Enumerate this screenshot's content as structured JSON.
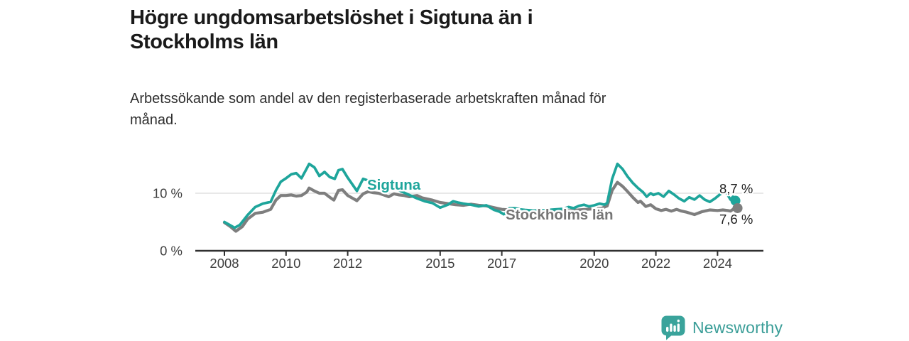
{
  "header": {
    "title": "Högre ungdomsarbetslöshet i Sigtuna än i Stockholms län",
    "subtitle": "Arbetssökande som andel av den registerbaserade arbetskraften månad för månad."
  },
  "footer": {
    "brand": "Newsworthy",
    "logo_icon": "bar-chart-speech-bubble-icon"
  },
  "colors": {
    "sigtuna_line": "#1ea59b",
    "stockholm_line": "#7e7e7e",
    "stockholm_label": "#767676",
    "value_label": "#1f1f1f",
    "axis": "#303030",
    "axis_text": "#3e3e3e",
    "gridline": "#d9d9d9",
    "brand_teal": "#3aa39b"
  },
  "chart_data": {
    "type": "line",
    "title": "Högre ungdomsarbetslöshet i Sigtuna än i Stockholms län",
    "subtitle": "Arbetssökande som andel av den registerbaserade arbetskraften månad för månad.",
    "unit": "%",
    "x_axis": {
      "range": [
        2007.05,
        2025.5
      ],
      "ticks": [
        2008,
        2010,
        2012,
        2015,
        2017,
        2020,
        2022,
        2024
      ],
      "grid": false
    },
    "y_axis": {
      "range": [
        0,
        17
      ],
      "ticks": [
        {
          "value": 0,
          "label": "0 %"
        },
        {
          "value": 10,
          "label": "10 %"
        }
      ],
      "grid": true
    },
    "legend_position": "inline-labels-on-lines",
    "series": [
      {
        "name": "Sigtuna",
        "end_label": "8,7 %",
        "final_value": 8.7,
        "points": [
          [
            2008.0,
            5.0
          ],
          [
            2008.17,
            4.5
          ],
          [
            2008.33,
            4.0
          ],
          [
            2008.5,
            4.5
          ],
          [
            2008.75,
            6.2
          ],
          [
            2009.0,
            7.6
          ],
          [
            2009.25,
            8.2
          ],
          [
            2009.5,
            8.5
          ],
          [
            2009.67,
            10.5
          ],
          [
            2009.83,
            12.0
          ],
          [
            2010.0,
            12.6
          ],
          [
            2010.17,
            13.3
          ],
          [
            2010.33,
            13.5
          ],
          [
            2010.5,
            12.6
          ],
          [
            2010.67,
            14.3
          ],
          [
            2010.75,
            15.1
          ],
          [
            2010.92,
            14.5
          ],
          [
            2011.08,
            13.0
          ],
          [
            2011.25,
            13.7
          ],
          [
            2011.42,
            12.8
          ],
          [
            2011.58,
            12.5
          ],
          [
            2011.7,
            14.0
          ],
          [
            2011.83,
            14.2
          ],
          [
            2012.0,
            12.7
          ],
          [
            2012.17,
            11.4
          ],
          [
            2012.3,
            10.4
          ],
          [
            2012.5,
            12.5
          ],
          [
            2012.67,
            12.2
          ],
          [
            2012.83,
            11.7
          ],
          [
            2013.0,
            11.4
          ],
          [
            2013.25,
            11.2
          ],
          [
            2013.5,
            11.0
          ],
          [
            2013.75,
            10.3
          ],
          [
            2014.0,
            9.7
          ],
          [
            2014.25,
            9.1
          ],
          [
            2014.5,
            8.6
          ],
          [
            2014.75,
            8.3
          ],
          [
            2015.0,
            7.5
          ],
          [
            2015.25,
            8.0
          ],
          [
            2015.42,
            8.6
          ],
          [
            2015.58,
            8.4
          ],
          [
            2015.75,
            8.2
          ],
          [
            2016.0,
            8.0
          ],
          [
            2016.25,
            7.7
          ],
          [
            2016.5,
            7.9
          ],
          [
            2016.75,
            7.1
          ],
          [
            2016.92,
            6.8
          ],
          [
            2017.08,
            6.3
          ],
          [
            2017.25,
            7.4
          ],
          [
            2017.42,
            7.4
          ],
          [
            2017.58,
            7.2
          ],
          [
            2017.75,
            7.1
          ],
          [
            2018.0,
            7.0
          ],
          [
            2018.25,
            7.0
          ],
          [
            2018.5,
            7.1
          ],
          [
            2018.75,
            7.2
          ],
          [
            2019.0,
            7.3
          ],
          [
            2019.17,
            7.6
          ],
          [
            2019.33,
            7.4
          ],
          [
            2019.5,
            7.8
          ],
          [
            2019.67,
            8.0
          ],
          [
            2019.83,
            7.7
          ],
          [
            2020.0,
            7.9
          ],
          [
            2020.17,
            8.2
          ],
          [
            2020.33,
            8.0
          ],
          [
            2020.42,
            8.3
          ],
          [
            2020.58,
            12.5
          ],
          [
            2020.75,
            15.1
          ],
          [
            2020.92,
            14.2
          ],
          [
            2021.08,
            12.9
          ],
          [
            2021.25,
            11.8
          ],
          [
            2021.42,
            10.9
          ],
          [
            2021.58,
            10.2
          ],
          [
            2021.7,
            9.4
          ],
          [
            2021.83,
            10.0
          ],
          [
            2021.92,
            9.7
          ],
          [
            2022.08,
            10.0
          ],
          [
            2022.25,
            9.4
          ],
          [
            2022.42,
            10.4
          ],
          [
            2022.58,
            9.8
          ],
          [
            2022.75,
            9.1
          ],
          [
            2022.92,
            8.6
          ],
          [
            2023.08,
            9.3
          ],
          [
            2023.25,
            8.9
          ],
          [
            2023.42,
            9.6
          ],
          [
            2023.58,
            8.9
          ],
          [
            2023.75,
            8.5
          ],
          [
            2023.92,
            9.1
          ],
          [
            2024.08,
            9.8
          ],
          [
            2024.25,
            10.4
          ],
          [
            2024.42,
            8.9
          ],
          [
            2024.5,
            9.4
          ],
          [
            2024.58,
            8.7
          ]
        ]
      },
      {
        "name": "Stockholms län",
        "end_label": "7,6 %",
        "final_value": 7.6,
        "points": [
          [
            2008.0,
            4.9
          ],
          [
            2008.17,
            4.3
          ],
          [
            2008.37,
            3.4
          ],
          [
            2008.58,
            4.2
          ],
          [
            2008.75,
            5.5
          ],
          [
            2009.0,
            6.5
          ],
          [
            2009.25,
            6.7
          ],
          [
            2009.5,
            7.2
          ],
          [
            2009.67,
            8.8
          ],
          [
            2009.83,
            9.6
          ],
          [
            2010.0,
            9.6
          ],
          [
            2010.17,
            9.7
          ],
          [
            2010.33,
            9.5
          ],
          [
            2010.5,
            9.6
          ],
          [
            2010.67,
            10.2
          ],
          [
            2010.75,
            10.9
          ],
          [
            2010.92,
            10.4
          ],
          [
            2011.08,
            10.0
          ],
          [
            2011.25,
            10.0
          ],
          [
            2011.42,
            9.3
          ],
          [
            2011.55,
            8.8
          ],
          [
            2011.7,
            10.5
          ],
          [
            2011.83,
            10.6
          ],
          [
            2012.0,
            9.6
          ],
          [
            2012.17,
            9.1
          ],
          [
            2012.3,
            8.7
          ],
          [
            2012.5,
            9.9
          ],
          [
            2012.67,
            10.3
          ],
          [
            2012.83,
            10.1
          ],
          [
            2013.0,
            10.0
          ],
          [
            2013.17,
            9.7
          ],
          [
            2013.33,
            9.4
          ],
          [
            2013.5,
            9.9
          ],
          [
            2013.67,
            9.7
          ],
          [
            2013.83,
            9.6
          ],
          [
            2014.0,
            9.4
          ],
          [
            2014.25,
            9.6
          ],
          [
            2014.42,
            9.2
          ],
          [
            2014.58,
            9.0
          ],
          [
            2014.75,
            8.8
          ],
          [
            2015.0,
            8.4
          ],
          [
            2015.25,
            8.2
          ],
          [
            2015.5,
            8.0
          ],
          [
            2015.75,
            7.9
          ],
          [
            2016.0,
            8.1
          ],
          [
            2016.25,
            7.9
          ],
          [
            2016.5,
            7.8
          ],
          [
            2016.75,
            7.5
          ],
          [
            2017.0,
            7.2
          ],
          [
            2017.25,
            7.1
          ],
          [
            2017.5,
            7.0
          ],
          [
            2017.75,
            6.9
          ],
          [
            2018.0,
            6.8
          ],
          [
            2018.25,
            6.7
          ],
          [
            2018.5,
            6.7
          ],
          [
            2018.75,
            6.8
          ],
          [
            2019.0,
            6.9
          ],
          [
            2019.25,
            7.0
          ],
          [
            2019.5,
            7.1
          ],
          [
            2019.75,
            7.2
          ],
          [
            2020.0,
            7.3
          ],
          [
            2020.25,
            7.4
          ],
          [
            2020.42,
            7.8
          ],
          [
            2020.58,
            10.5
          ],
          [
            2020.75,
            11.9
          ],
          [
            2020.92,
            11.2
          ],
          [
            2021.08,
            10.3
          ],
          [
            2021.25,
            9.3
          ],
          [
            2021.42,
            8.4
          ],
          [
            2021.5,
            8.6
          ],
          [
            2021.67,
            7.7
          ],
          [
            2021.83,
            8.0
          ],
          [
            2022.0,
            7.3
          ],
          [
            2022.17,
            7.0
          ],
          [
            2022.33,
            7.2
          ],
          [
            2022.5,
            6.9
          ],
          [
            2022.67,
            7.2
          ],
          [
            2022.83,
            6.9
          ],
          [
            2023.0,
            6.7
          ],
          [
            2023.25,
            6.3
          ],
          [
            2023.5,
            6.8
          ],
          [
            2023.75,
            7.1
          ],
          [
            2024.0,
            7.0
          ],
          [
            2024.17,
            7.1
          ],
          [
            2024.33,
            7.0
          ],
          [
            2024.42,
            6.9
          ],
          [
            2024.5,
            7.2
          ],
          [
            2024.58,
            7.6
          ]
        ]
      }
    ]
  }
}
